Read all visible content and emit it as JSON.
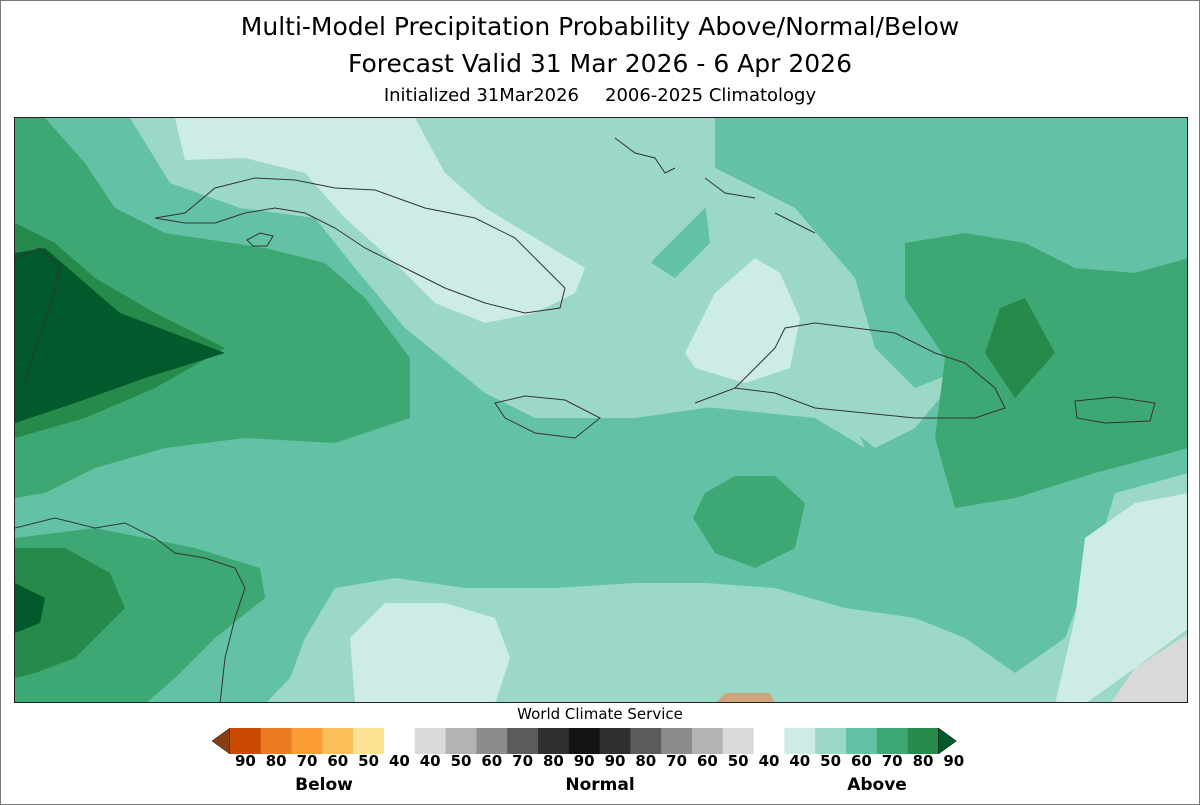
{
  "title": {
    "line1": "Multi-Model Precipitation Probability Above/Normal/Below",
    "line2": "Forecast Valid 31 Mar 2026 - 6 Apr 2026",
    "initialized": "Initialized 31Mar2026",
    "climatology": "2006-2025 Climatology"
  },
  "map": {
    "region": "Caribbean",
    "colors": {
      "above_40": "#cdece5",
      "above_50": "#9bd8c8",
      "above_60": "#63c2a5",
      "above_70": "#3ea874",
      "above_80": "#258a4a",
      "above_90": "#005a2c",
      "below_40": "#cfa57e",
      "normal_50": "#d9d9d9"
    }
  },
  "credit": "World Climate Service",
  "legend": {
    "labels": [
      "90",
      "80",
      "70",
      "60",
      "50",
      "40",
      "40",
      "50",
      "60",
      "70",
      "80",
      "90",
      "90",
      "80",
      "70",
      "60",
      "50",
      "40",
      "40",
      "50",
      "60",
      "70",
      "80",
      "90"
    ],
    "categories": [
      "Below",
      "Normal",
      "Above"
    ],
    "below_colors": [
      "#cb4a02",
      "#eb7c23",
      "#fb9c35",
      "#fdbf5a",
      "#fde294",
      "#ffffff"
    ],
    "normal_colors": [
      "#ffffff",
      "#d9d9d9",
      "#b3b3b3",
      "#8c8c8c",
      "#5c5c5c",
      "#303030",
      "#141414",
      "#303030",
      "#5c5c5c",
      "#8c8c8c",
      "#b3b3b3",
      "#d9d9d9",
      "#ffffff"
    ],
    "above_colors": [
      "#ffffff",
      "#cdece5",
      "#9bd8c8",
      "#63c2a5",
      "#3ea874",
      "#258a4a"
    ],
    "below_arrow_color": "#8b3c12",
    "above_arrow_color": "#005a2c"
  }
}
